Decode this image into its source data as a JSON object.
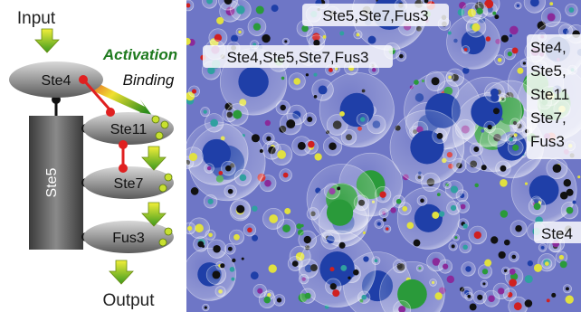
{
  "diagram": {
    "input_label": "Input",
    "output_label": "Output",
    "activation_label": "Activation",
    "binding_label": "Binding",
    "nodes": {
      "ste4": "Ste4",
      "ste5": "Ste5",
      "ste11": "Ste11",
      "ste7": "Ste7",
      "fus3": "Fus3"
    }
  },
  "simulation": {
    "complex_labels": {
      "top": "Ste5,Ste7,Fus3",
      "left": "Ste4,Ste5,Ste7,Fus3",
      "right_lines": [
        "Ste4,",
        "Ste5,",
        "Ste11",
        "Ste7,",
        "Fus3"
      ],
      "bottom_right": "Ste4"
    }
  }
}
